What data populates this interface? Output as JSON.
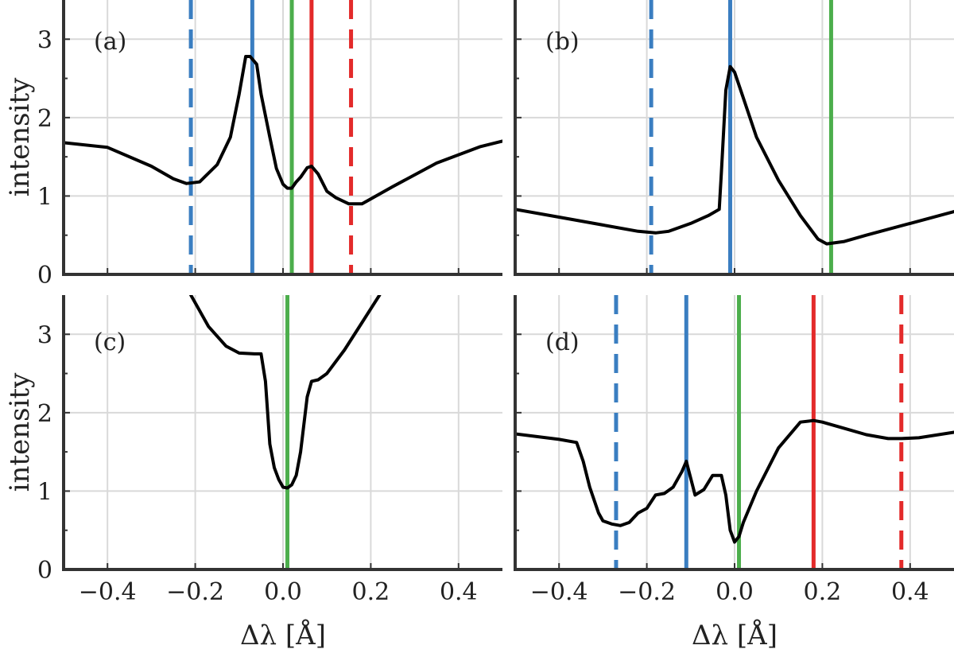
{
  "chart_data": [
    {
      "type": "line",
      "panel_label": "(a)",
      "xlabel": "",
      "ylabel": "intensity",
      "xlim": [
        -0.5,
        0.5
      ],
      "ylim": [
        0,
        3.5
      ],
      "xticks": [
        -0.4,
        -0.2,
        0.0,
        0.2,
        0.4
      ],
      "xtick_labels": [
        "",
        "",
        "",
        "",
        ""
      ],
      "yticks": [
        0,
        1,
        2,
        3
      ],
      "ytick_labels": [
        "0",
        "1",
        "2",
        "3"
      ],
      "grid": true,
      "series": [
        {
          "color": "#000000",
          "x": [
            -0.5,
            -0.4,
            -0.3,
            -0.25,
            -0.22,
            -0.19,
            -0.15,
            -0.12,
            -0.1,
            -0.085,
            -0.075,
            -0.06,
            -0.05,
            -0.03,
            -0.015,
            0.0,
            0.01,
            0.02,
            0.03,
            0.04,
            0.055,
            0.065,
            0.08,
            0.1,
            0.12,
            0.15,
            0.18,
            0.25,
            0.35,
            0.45,
            0.5
          ],
          "y": [
            1.68,
            1.62,
            1.38,
            1.22,
            1.16,
            1.18,
            1.4,
            1.75,
            2.3,
            2.78,
            2.78,
            2.68,
            2.3,
            1.75,
            1.35,
            1.15,
            1.1,
            1.1,
            1.18,
            1.24,
            1.36,
            1.38,
            1.28,
            1.06,
            0.98,
            0.9,
            0.9,
            1.12,
            1.42,
            1.63,
            1.7
          ]
        }
      ],
      "vlines": [
        {
          "x": -0.21,
          "color": "#3a7ec1",
          "style": "dashed"
        },
        {
          "x": -0.07,
          "color": "#3a7ec1",
          "style": "solid"
        },
        {
          "x": 0.02,
          "color": "#4cae4c",
          "style": "solid"
        },
        {
          "x": 0.065,
          "color": "#e32a2a",
          "style": "solid"
        },
        {
          "x": 0.155,
          "color": "#e32a2a",
          "style": "dashed"
        }
      ]
    },
    {
      "type": "line",
      "panel_label": "(b)",
      "xlabel": "",
      "ylabel": "",
      "xlim": [
        -0.5,
        0.5
      ],
      "ylim": [
        0,
        3.5
      ],
      "xticks": [
        -0.4,
        -0.2,
        0.0,
        0.2,
        0.4
      ],
      "xtick_labels": [
        "",
        "",
        "",
        "",
        ""
      ],
      "yticks": [
        0,
        1,
        2,
        3
      ],
      "ytick_labels": [
        "",
        "",
        "",
        ""
      ],
      "grid": true,
      "series": [
        {
          "color": "#000000",
          "x": [
            -0.5,
            -0.4,
            -0.3,
            -0.22,
            -0.18,
            -0.15,
            -0.1,
            -0.06,
            -0.035,
            -0.03,
            -0.02,
            -0.01,
            0.0,
            0.02,
            0.05,
            0.1,
            0.15,
            0.19,
            0.21,
            0.25,
            0.3,
            0.4,
            0.5
          ],
          "y": [
            0.83,
            0.73,
            0.63,
            0.55,
            0.53,
            0.55,
            0.65,
            0.75,
            0.83,
            1.3,
            2.35,
            2.65,
            2.58,
            2.25,
            1.75,
            1.2,
            0.75,
            0.45,
            0.39,
            0.42,
            0.5,
            0.65,
            0.8
          ]
        }
      ],
      "vlines": [
        {
          "x": -0.19,
          "color": "#3a7ec1",
          "style": "dashed"
        },
        {
          "x": -0.01,
          "color": "#3a7ec1",
          "style": "solid"
        },
        {
          "x": 0.22,
          "color": "#4cae4c",
          "style": "solid"
        }
      ]
    },
    {
      "type": "line",
      "panel_label": "(c)",
      "xlabel": "Δλ [Å]",
      "ylabel": "intensity",
      "xlim": [
        -0.5,
        0.5
      ],
      "ylim": [
        0,
        3.5
      ],
      "xticks": [
        -0.4,
        -0.2,
        0.0,
        0.2,
        0.4
      ],
      "xtick_labels": [
        "−0.4",
        "−0.2",
        "0.0",
        "0.2",
        "0.4"
      ],
      "yticks": [
        0,
        1,
        2,
        3
      ],
      "ytick_labels": [
        "0",
        "1",
        "2",
        "3"
      ],
      "grid": true,
      "series": [
        {
          "color": "#000000",
          "x": [
            -0.21,
            -0.17,
            -0.13,
            -0.1,
            -0.065,
            -0.05,
            -0.04,
            -0.03,
            -0.02,
            -0.01,
            0.0,
            0.01,
            0.02,
            0.03,
            0.04,
            0.055,
            0.065,
            0.08,
            0.1,
            0.14,
            0.18,
            0.22
          ],
          "y": [
            3.5,
            3.1,
            2.85,
            2.76,
            2.75,
            2.75,
            2.4,
            1.6,
            1.3,
            1.15,
            1.05,
            1.04,
            1.08,
            1.2,
            1.5,
            2.2,
            2.4,
            2.42,
            2.5,
            2.8,
            3.15,
            3.5
          ]
        }
      ],
      "vlines": [
        {
          "x": 0.01,
          "color": "#4cae4c",
          "style": "solid"
        }
      ]
    },
    {
      "type": "line",
      "panel_label": "(d)",
      "xlabel": "Δλ [Å]",
      "ylabel": "",
      "xlim": [
        -0.5,
        0.5
      ],
      "ylim": [
        0,
        3.5
      ],
      "xticks": [
        -0.4,
        -0.2,
        0.0,
        0.2,
        0.4
      ],
      "xtick_labels": [
        "−0.4",
        "−0.2",
        "0.0",
        "0.2",
        "0.4"
      ],
      "yticks": [
        0,
        1,
        2,
        3
      ],
      "ytick_labels": [
        "",
        "",
        "",
        ""
      ],
      "grid": true,
      "series": [
        {
          "color": "#000000",
          "x": [
            -0.5,
            -0.4,
            -0.36,
            -0.345,
            -0.33,
            -0.31,
            -0.3,
            -0.28,
            -0.26,
            -0.24,
            -0.22,
            -0.2,
            -0.18,
            -0.16,
            -0.14,
            -0.12,
            -0.11,
            -0.09,
            -0.07,
            -0.05,
            -0.03,
            -0.02,
            -0.01,
            0.0,
            0.01,
            0.02,
            0.05,
            0.1,
            0.15,
            0.18,
            0.2,
            0.25,
            0.3,
            0.35,
            0.38,
            0.42,
            0.5
          ],
          "y": [
            1.73,
            1.66,
            1.62,
            1.38,
            1.05,
            0.72,
            0.62,
            0.58,
            0.56,
            0.6,
            0.72,
            0.78,
            0.95,
            0.97,
            1.05,
            1.25,
            1.38,
            0.95,
            1.02,
            1.2,
            1.2,
            0.95,
            0.5,
            0.35,
            0.42,
            0.6,
            1.0,
            1.55,
            1.88,
            1.9,
            1.88,
            1.8,
            1.72,
            1.67,
            1.67,
            1.68,
            1.75
          ]
        }
      ],
      "vlines": [
        {
          "x": -0.27,
          "color": "#3a7ec1",
          "style": "dashed"
        },
        {
          "x": -0.11,
          "color": "#3a7ec1",
          "style": "solid"
        },
        {
          "x": 0.01,
          "color": "#4cae4c",
          "style": "solid"
        },
        {
          "x": 0.18,
          "color": "#e32a2a",
          "style": "solid"
        },
        {
          "x": 0.38,
          "color": "#e32a2a",
          "style": "dashed"
        }
      ]
    }
  ]
}
